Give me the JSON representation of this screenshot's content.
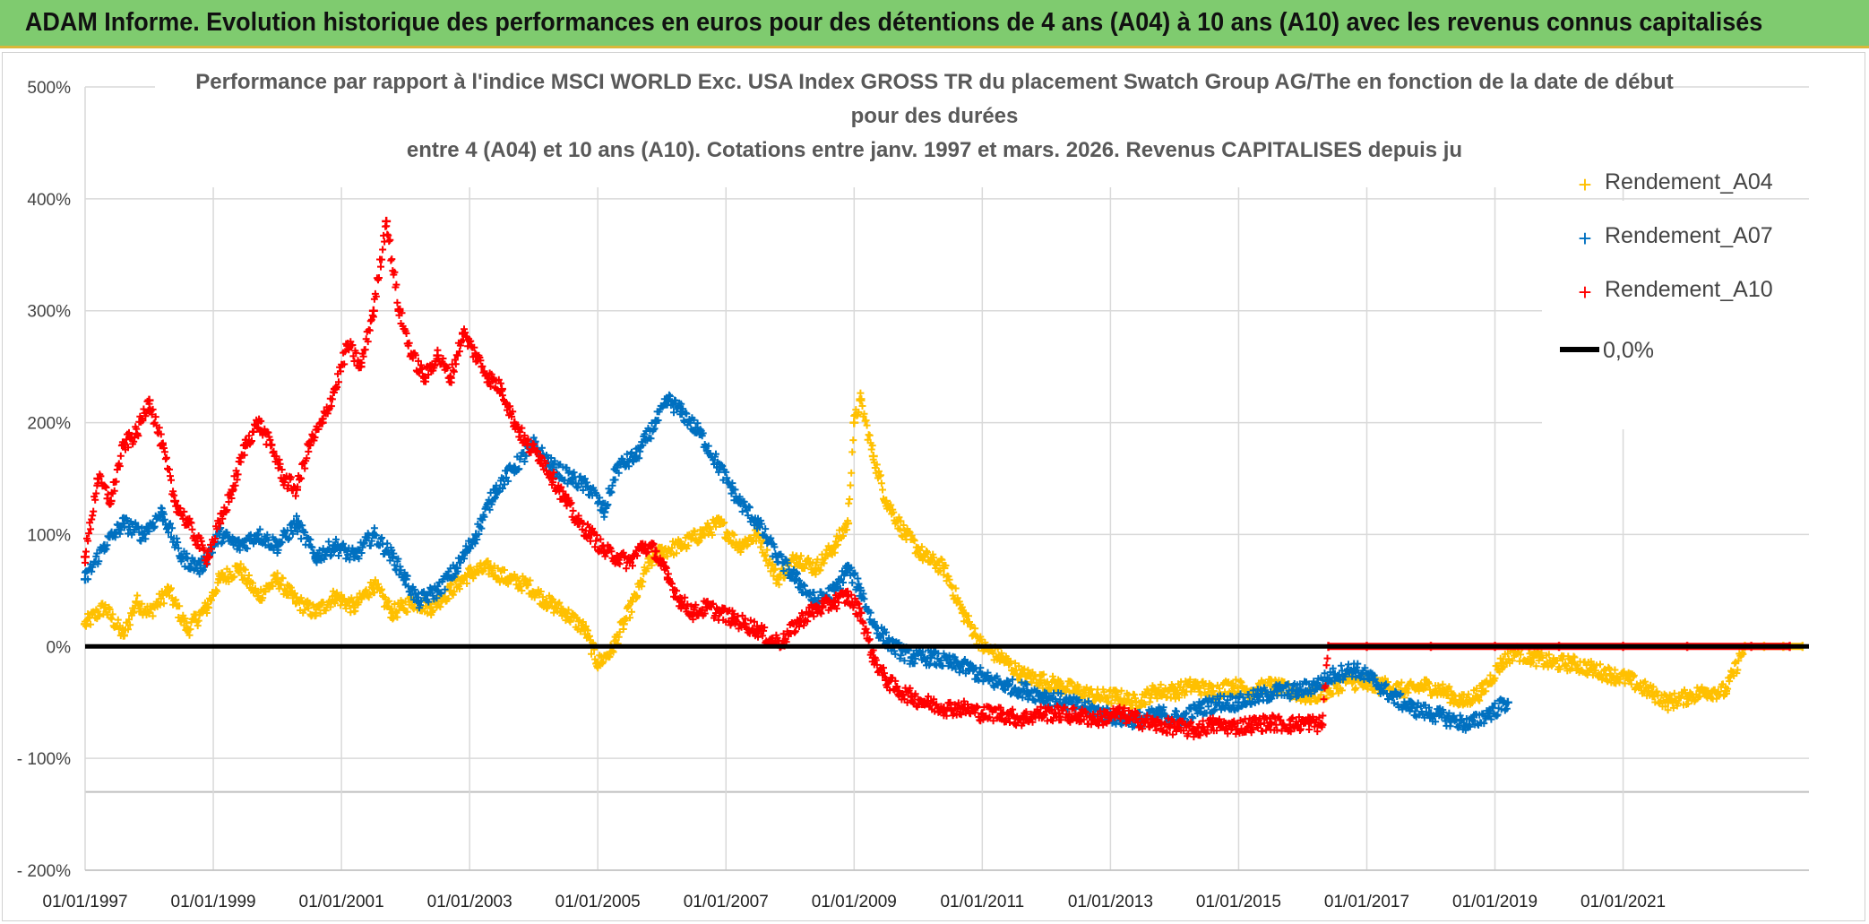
{
  "banner": {
    "title": "ADAM Informe. Evolution historique des performances en euros pour des détentions de 4 ans (A04) à 10 ans (A10) avec les revenus connus capitalisés"
  },
  "colors": {
    "banner_bg": "#7fcb6f",
    "A04": "#ffc000",
    "A07": "#0070c0",
    "A10": "#ff0000",
    "zero": "#000000",
    "grid": "#d9d9d9"
  },
  "chart_data": {
    "type": "scatter",
    "title_lines": [
      "Performance par rapport à l'indice MSCI WORLD Exc. USA Index GROSS TR  du placement Swatch Group AG/The en fonction de la date de début",
      "pour des durées",
      "entre 4 (A04) et 10 ans (A10). Cotations entre janv. 1997 et mars. 2026. Revenus CAPITALISES depuis ju"
    ],
    "ylim": [
      -200,
      500
    ],
    "yticks": [
      {
        "value": 500,
        "label": "500%"
      },
      {
        "value": 400,
        "label": "400%"
      },
      {
        "value": 300,
        "label": "300%"
      },
      {
        "value": 200,
        "label": "200%"
      },
      {
        "value": 100,
        "label": "100%"
      },
      {
        "value": 0,
        "label": "0%"
      },
      {
        "value": -100,
        "label": "- 100%"
      },
      {
        "value": -200,
        "label": "- 200%"
      }
    ],
    "xlim": [
      1997.0,
      2023.9
    ],
    "xticks": [
      {
        "value": 1997,
        "label": "01/01/1997"
      },
      {
        "value": 1999,
        "label": "01/01/1999"
      },
      {
        "value": 2001,
        "label": "01/01/2001"
      },
      {
        "value": 2003,
        "label": "01/01/2003"
      },
      {
        "value": 2005,
        "label": "01/01/2005"
      },
      {
        "value": 2007,
        "label": "01/01/2007"
      },
      {
        "value": 2009,
        "label": "01/01/2009"
      },
      {
        "value": 2011,
        "label": "01/01/2011"
      },
      {
        "value": 2013,
        "label": "01/01/2013"
      },
      {
        "value": 2015,
        "label": "01/01/2015"
      },
      {
        "value": 2017,
        "label": "01/01/2017"
      },
      {
        "value": 2019,
        "label": "01/01/2019"
      },
      {
        "value": 2021,
        "label": "01/01/2021"
      }
    ],
    "legend_position": "top-right",
    "series": [
      {
        "name": "Rendement_A04",
        "color": "#ffc000",
        "marker": "+",
        "points": [
          [
            1997.0,
            20
          ],
          [
            1997.3,
            35
          ],
          [
            1997.6,
            10
          ],
          [
            1997.8,
            40
          ],
          [
            1998.0,
            30
          ],
          [
            1998.3,
            50
          ],
          [
            1998.6,
            15
          ],
          [
            1998.9,
            35
          ],
          [
            1999.1,
            60
          ],
          [
            1999.4,
            70
          ],
          [
            1999.7,
            45
          ],
          [
            2000.0,
            60
          ],
          [
            2000.3,
            40
          ],
          [
            2000.6,
            30
          ],
          [
            2000.9,
            45
          ],
          [
            2001.2,
            35
          ],
          [
            2001.5,
            55
          ],
          [
            2001.8,
            30
          ],
          [
            2002.1,
            40
          ],
          [
            2002.4,
            35
          ],
          [
            2002.7,
            50
          ],
          [
            2003.0,
            65
          ],
          [
            2003.3,
            70
          ],
          [
            2003.6,
            60
          ],
          [
            2003.9,
            55
          ],
          [
            2004.2,
            40
          ],
          [
            2004.5,
            30
          ],
          [
            2004.8,
            15
          ],
          [
            2005.0,
            -15
          ],
          [
            2005.2,
            -5
          ],
          [
            2005.4,
            20
          ],
          [
            2005.6,
            45
          ],
          [
            2005.8,
            75
          ],
          [
            2006.0,
            85
          ],
          [
            2006.3,
            90
          ],
          [
            2006.6,
            100
          ],
          [
            2006.9,
            110
          ],
          [
            2007.2,
            90
          ],
          [
            2007.5,
            100
          ],
          [
            2007.8,
            60
          ],
          [
            2008.1,
            80
          ],
          [
            2008.4,
            70
          ],
          [
            2008.7,
            90
          ],
          [
            2008.9,
            110
          ],
          [
            2009.0,
            200
          ],
          [
            2009.1,
            220
          ],
          [
            2009.3,
            170
          ],
          [
            2009.5,
            130
          ],
          [
            2009.8,
            100
          ],
          [
            2010.1,
            80
          ],
          [
            2010.4,
            70
          ],
          [
            2010.7,
            30
          ],
          [
            2011.0,
            0
          ],
          [
            2011.3,
            -10
          ],
          [
            2011.6,
            -25
          ],
          [
            2011.9,
            -30
          ],
          [
            2012.2,
            -35
          ],
          [
            2012.5,
            -40
          ],
          [
            2012.8,
            -45
          ],
          [
            2013.1,
            -45
          ],
          [
            2013.4,
            -50
          ],
          [
            2013.7,
            -40
          ],
          [
            2014.0,
            -40
          ],
          [
            2014.3,
            -35
          ],
          [
            2014.6,
            -40
          ],
          [
            2014.9,
            -35
          ],
          [
            2015.2,
            -40
          ],
          [
            2015.5,
            -35
          ],
          [
            2015.8,
            -40
          ],
          [
            2016.1,
            -45
          ],
          [
            2016.4,
            -40
          ],
          [
            2016.7,
            -30
          ],
          [
            2017.0,
            -35
          ],
          [
            2017.3,
            -35
          ],
          [
            2017.6,
            -40
          ],
          [
            2017.9,
            -35
          ],
          [
            2018.2,
            -40
          ],
          [
            2018.5,
            -50
          ],
          [
            2018.8,
            -40
          ],
          [
            2019.1,
            -15
          ],
          [
            2019.3,
            -5
          ],
          [
            2019.6,
            -10
          ],
          [
            2019.9,
            -15
          ],
          [
            2020.2,
            -15
          ],
          [
            2020.5,
            -20
          ],
          [
            2020.8,
            -25
          ],
          [
            2021.1,
            -30
          ],
          [
            2021.4,
            -40
          ],
          [
            2021.7,
            -50
          ],
          [
            2022.0,
            -45
          ],
          [
            2022.3,
            -40
          ],
          [
            2022.6,
            -40
          ],
          [
            2022.9,
            0
          ],
          [
            2023.2,
            0
          ],
          [
            2023.5,
            0
          ],
          [
            2023.8,
            0
          ]
        ]
      },
      {
        "name": "Rendement_A07",
        "color": "#0070c0",
        "marker": "+",
        "points": [
          [
            1997.0,
            60
          ],
          [
            1997.3,
            90
          ],
          [
            1997.6,
            110
          ],
          [
            1997.9,
            100
          ],
          [
            1998.2,
            120
          ],
          [
            1998.5,
            80
          ],
          [
            1998.8,
            70
          ],
          [
            1999.1,
            100
          ],
          [
            1999.4,
            90
          ],
          [
            1999.7,
            100
          ],
          [
            2000.0,
            90
          ],
          [
            2000.3,
            110
          ],
          [
            2000.6,
            80
          ],
          [
            2000.9,
            90
          ],
          [
            2001.2,
            80
          ],
          [
            2001.5,
            100
          ],
          [
            2001.8,
            80
          ],
          [
            2002.0,
            60
          ],
          [
            2002.2,
            40
          ],
          [
            2002.5,
            50
          ],
          [
            2002.8,
            70
          ],
          [
            2003.1,
            100
          ],
          [
            2003.4,
            140
          ],
          [
            2003.7,
            160
          ],
          [
            2004.0,
            180
          ],
          [
            2004.3,
            160
          ],
          [
            2004.6,
            150
          ],
          [
            2004.9,
            140
          ],
          [
            2005.1,
            120
          ],
          [
            2005.3,
            160
          ],
          [
            2005.6,
            170
          ],
          [
            2005.9,
            200
          ],
          [
            2006.1,
            220
          ],
          [
            2006.3,
            210
          ],
          [
            2006.6,
            190
          ],
          [
            2006.9,
            160
          ],
          [
            2007.2,
            130
          ],
          [
            2007.5,
            110
          ],
          [
            2007.8,
            80
          ],
          [
            2008.1,
            60
          ],
          [
            2008.4,
            40
          ],
          [
            2008.7,
            50
          ],
          [
            2008.9,
            70
          ],
          [
            2009.1,
            50
          ],
          [
            2009.3,
            20
          ],
          [
            2009.6,
            0
          ],
          [
            2009.9,
            -10
          ],
          [
            2010.2,
            -10
          ],
          [
            2010.5,
            -15
          ],
          [
            2010.8,
            -20
          ],
          [
            2011.1,
            -30
          ],
          [
            2011.4,
            -35
          ],
          [
            2011.7,
            -40
          ],
          [
            2012.0,
            -45
          ],
          [
            2012.3,
            -50
          ],
          [
            2012.6,
            -55
          ],
          [
            2012.9,
            -60
          ],
          [
            2013.2,
            -65
          ],
          [
            2013.5,
            -65
          ],
          [
            2013.8,
            -60
          ],
          [
            2014.1,
            -65
          ],
          [
            2014.4,
            -55
          ],
          [
            2014.7,
            -50
          ],
          [
            2015.0,
            -50
          ],
          [
            2015.3,
            -45
          ],
          [
            2015.6,
            -40
          ],
          [
            2015.9,
            -40
          ],
          [
            2016.2,
            -35
          ],
          [
            2016.5,
            -25
          ],
          [
            2016.8,
            -20
          ],
          [
            2017.1,
            -30
          ],
          [
            2017.4,
            -45
          ],
          [
            2017.7,
            -55
          ],
          [
            2018.0,
            -60
          ],
          [
            2018.3,
            -65
          ],
          [
            2018.6,
            -70
          ],
          [
            2018.9,
            -60
          ],
          [
            2019.2,
            -50
          ]
        ]
      },
      {
        "name": "Rendement_A10",
        "color": "#ff0000",
        "marker": "+",
        "points": [
          [
            1997.0,
            80
          ],
          [
            1997.2,
            150
          ],
          [
            1997.4,
            130
          ],
          [
            1997.6,
            180
          ],
          [
            1997.8,
            190
          ],
          [
            1998.0,
            220
          ],
          [
            1998.2,
            180
          ],
          [
            1998.4,
            130
          ],
          [
            1998.6,
            110
          ],
          [
            1998.9,
            80
          ],
          [
            1999.1,
            110
          ],
          [
            1999.3,
            140
          ],
          [
            1999.5,
            180
          ],
          [
            1999.7,
            200
          ],
          [
            1999.9,
            180
          ],
          [
            2000.1,
            150
          ],
          [
            2000.3,
            140
          ],
          [
            2000.5,
            180
          ],
          [
            2000.7,
            200
          ],
          [
            2000.9,
            230
          ],
          [
            2001.1,
            270
          ],
          [
            2001.3,
            250
          ],
          [
            2001.5,
            300
          ],
          [
            2001.7,
            380
          ],
          [
            2001.9,
            300
          ],
          [
            2002.1,
            260
          ],
          [
            2002.3,
            240
          ],
          [
            2002.5,
            260
          ],
          [
            2002.7,
            240
          ],
          [
            2002.9,
            280
          ],
          [
            2003.1,
            260
          ],
          [
            2003.3,
            240
          ],
          [
            2003.5,
            230
          ],
          [
            2003.7,
            200
          ],
          [
            2003.9,
            180
          ],
          [
            2004.1,
            170
          ],
          [
            2004.3,
            150
          ],
          [
            2004.5,
            130
          ],
          [
            2004.7,
            110
          ],
          [
            2004.9,
            100
          ],
          [
            2005.1,
            85
          ],
          [
            2005.3,
            80
          ],
          [
            2005.5,
            75
          ],
          [
            2005.7,
            90
          ],
          [
            2005.9,
            85
          ],
          [
            2006.1,
            60
          ],
          [
            2006.3,
            40
          ],
          [
            2006.5,
            30
          ],
          [
            2006.7,
            35
          ],
          [
            2006.9,
            30
          ],
          [
            2007.1,
            25
          ],
          [
            2007.3,
            20
          ],
          [
            2007.5,
            15
          ],
          [
            2007.7,
            5
          ],
          [
            2007.9,
            5
          ],
          [
            2008.1,
            20
          ],
          [
            2008.3,
            30
          ],
          [
            2008.5,
            35
          ],
          [
            2008.7,
            40
          ],
          [
            2008.9,
            45
          ],
          [
            2009.1,
            30
          ],
          [
            2009.3,
            -10
          ],
          [
            2009.5,
            -30
          ],
          [
            2009.7,
            -40
          ],
          [
            2009.9,
            -45
          ],
          [
            2010.1,
            -50
          ],
          [
            2010.4,
            -55
          ],
          [
            2010.7,
            -55
          ],
          [
            2011.0,
            -60
          ],
          [
            2011.3,
            -60
          ],
          [
            2011.6,
            -65
          ],
          [
            2011.9,
            -60
          ],
          [
            2012.2,
            -60
          ],
          [
            2012.5,
            -62
          ],
          [
            2012.8,
            -65
          ],
          [
            2013.1,
            -60
          ],
          [
            2013.4,
            -65
          ],
          [
            2013.7,
            -70
          ],
          [
            2014.0,
            -72
          ],
          [
            2014.3,
            -75
          ],
          [
            2014.6,
            -70
          ],
          [
            2014.9,
            -72
          ],
          [
            2015.2,
            -70
          ],
          [
            2015.5,
            -68
          ],
          [
            2015.8,
            -70
          ],
          [
            2016.1,
            -68
          ],
          [
            2016.3,
            -70
          ],
          [
            2016.4,
            0
          ],
          [
            2017.0,
            0
          ],
          [
            2018.0,
            0
          ],
          [
            2019.0,
            0
          ],
          [
            2020.0,
            0
          ],
          [
            2021.0,
            0
          ],
          [
            2022.0,
            0
          ],
          [
            2023.0,
            0
          ],
          [
            2023.6,
            0
          ]
        ]
      }
    ],
    "zero_line": {
      "name": "0,0%",
      "value": 0,
      "color": "#000000"
    }
  }
}
